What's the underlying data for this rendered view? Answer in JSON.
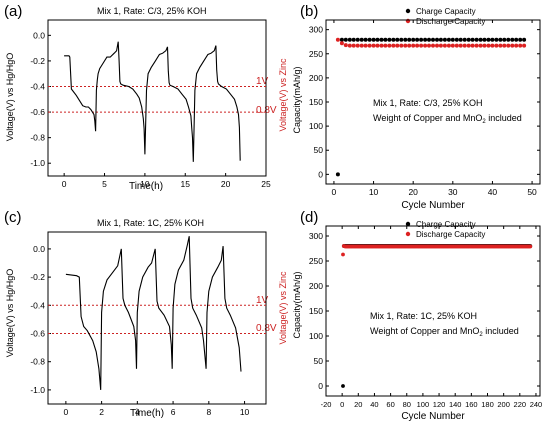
{
  "panels": [
    {
      "letter": "(a)",
      "annotation": "Mix 1, Rate: C/3, 25% KOH",
      "xlabel": "Time(h)",
      "ylabel": "Voltage(V) vs Hg/HgO",
      "ylabel_right": "Voltage(V) vs Zinc",
      "xticks": [
        "0",
        "5",
        "10",
        "15",
        "20",
        "25"
      ],
      "yticks": [
        "-1.0",
        "-0.8",
        "-0.6",
        "-0.4",
        "-0.2",
        "0.0"
      ],
      "ref_labels": [
        "1V",
        "0.8V"
      ]
    },
    {
      "letter": "(b)",
      "legend": [
        "Charge Capacity",
        "Discharge Capacity"
      ],
      "note_line1": "Mix 1, Rate: C/3, 25% KOH",
      "note_line2_pre": "Weight of Copper and MnO",
      "note_sub": "2",
      "note_line2_post": " included",
      "xlabel": "Cycle Number",
      "ylabel": "Capacity(mAh/g)",
      "xticks": [
        "0",
        "10",
        "20",
        "30",
        "40",
        "50"
      ],
      "yticks": [
        "0",
        "50",
        "100",
        "150",
        "200",
        "250",
        "300"
      ]
    },
    {
      "letter": "(c)",
      "annotation": "Mix 1, Rate: 1C, 25% KOH",
      "xlabel": "Time(h)",
      "ylabel": "Voltage(V) vs Hg/HgO",
      "ylabel_right": "Voltage(V) vs Zinc",
      "xticks": [
        "0",
        "2",
        "4",
        "6",
        "8",
        "10"
      ],
      "yticks": [
        "-1.0",
        "-0.8",
        "-0.6",
        "-0.4",
        "-0.2",
        "0.0"
      ],
      "ref_labels": [
        "1V",
        "0.8V"
      ]
    },
    {
      "letter": "(d)",
      "legend": [
        "Charge Capacity",
        "Discharge Capacity"
      ],
      "note_line1": "Mix 1, Rate: 1C, 25% KOH",
      "note_line2_pre": "Weight of Copper and MnO",
      "note_sub": "2",
      "note_line2_post": " included",
      "xlabel": "Cycle Number",
      "ylabel": "Capacity(mAh/g)",
      "xticks": [
        "-20",
        "0",
        "20",
        "40",
        "60",
        "80",
        "100",
        "120",
        "140",
        "160",
        "180",
        "200",
        "220",
        "240"
      ],
      "yticks": [
        "0",
        "50",
        "100",
        "150",
        "200",
        "250",
        "300"
      ]
    }
  ],
  "colors": {
    "line": "#000000",
    "ref": "#cc2222",
    "charge": "#000000",
    "discharge": "#dd2222"
  },
  "chart_data": [
    {
      "type": "line",
      "xlim": [
        -2,
        25
      ],
      "ylim": [
        -1.1,
        0.12
      ],
      "grid": false,
      "reference_lines": [
        -0.4,
        -0.6
      ],
      "series": [
        {
          "x": [
            0,
            0.6,
            0.7,
            0.9,
            1.5,
            2.3,
            2.7,
            3.0,
            3.3,
            3.7,
            3.8,
            3.9,
            4.0,
            4.1,
            4.2,
            4.4,
            4.8,
            5.3,
            5.7,
            6.2,
            6.5,
            6.7,
            6.8,
            6.9,
            7.0,
            7.3,
            8.0,
            8.5,
            9.0,
            9.3,
            9.6,
            9.8,
            9.9,
            10.0,
            10.2,
            10.4,
            10.8,
            11.3,
            11.8,
            12.2,
            12.6,
            12.8,
            12.9,
            13.0,
            13.1,
            13.5,
            14.1,
            14.6,
            15.1,
            15.4,
            15.7,
            15.8,
            15.9,
            16.0,
            16.2,
            16.4,
            16.8,
            17.3,
            17.8,
            18.2,
            18.6,
            18.8,
            18.9,
            19.0,
            19.1,
            19.5,
            20.1,
            20.6,
            21.1,
            21.4,
            21.6,
            21.7,
            21.8
          ],
          "y": [
            -0.16,
            -0.16,
            -0.17,
            -0.42,
            -0.47,
            -0.55,
            -0.56,
            -0.56,
            -0.58,
            -0.62,
            -0.67,
            -0.75,
            -0.43,
            -0.35,
            -0.3,
            -0.26,
            -0.22,
            -0.17,
            -0.17,
            -0.14,
            -0.12,
            -0.05,
            -0.2,
            -0.36,
            -0.38,
            -0.39,
            -0.4,
            -0.42,
            -0.46,
            -0.49,
            -0.56,
            -0.65,
            -0.73,
            -0.93,
            -0.43,
            -0.3,
            -0.25,
            -0.2,
            -0.15,
            -0.14,
            -0.12,
            -0.09,
            -0.28,
            -0.37,
            -0.39,
            -0.4,
            -0.42,
            -0.46,
            -0.5,
            -0.56,
            -0.63,
            -0.72,
            -0.8,
            -0.99,
            -0.43,
            -0.3,
            -0.25,
            -0.2,
            -0.15,
            -0.14,
            -0.12,
            -0.08,
            -0.27,
            -0.36,
            -0.38,
            -0.4,
            -0.42,
            -0.46,
            -0.5,
            -0.56,
            -0.62,
            -0.72,
            -0.98
          ]
        }
      ]
    },
    {
      "type": "scatter",
      "xlim": [
        -2,
        52
      ],
      "ylim": [
        -20,
        320
      ],
      "grid": false,
      "legend_position": "top-right",
      "series": [
        {
          "name": "Charge Capacity",
          "x": [
            1,
            2,
            3,
            4,
            5,
            6,
            7,
            8,
            9,
            10,
            11,
            12,
            13,
            14,
            15,
            16,
            17,
            18,
            19,
            20,
            21,
            22,
            23,
            24,
            25,
            26,
            27,
            28,
            29,
            30,
            31,
            32,
            33,
            34,
            35,
            36,
            37,
            38,
            39,
            40,
            41,
            42,
            43,
            44,
            45,
            46,
            47,
            48
          ],
          "y": [
            0,
            279,
            279,
            279,
            279,
            279,
            279,
            279,
            279,
            279,
            279,
            279,
            279,
            279,
            279,
            279,
            279,
            279,
            279,
            279,
            279,
            279,
            279,
            279,
            279,
            279,
            279,
            279,
            279,
            279,
            279,
            279,
            279,
            279,
            279,
            279,
            279,
            279,
            279,
            279,
            279,
            279,
            279,
            279,
            279,
            279,
            279,
            279
          ]
        },
        {
          "name": "Discharge Capacity",
          "x": [
            1,
            2,
            3,
            4,
            5,
            6,
            7,
            8,
            9,
            10,
            11,
            12,
            13,
            14,
            15,
            16,
            17,
            18,
            19,
            20,
            21,
            22,
            23,
            24,
            25,
            26,
            27,
            28,
            29,
            30,
            31,
            32,
            33,
            34,
            35,
            36,
            37,
            38,
            39,
            40,
            41,
            42,
            43,
            44,
            45,
            46,
            47,
            48
          ],
          "y": [
            279,
            272,
            268,
            267,
            267,
            267,
            267,
            267,
            267,
            267,
            267,
            267,
            267,
            267,
            267,
            267,
            267,
            267,
            267,
            267,
            267,
            267,
            267,
            267,
            267,
            267,
            267,
            267,
            267,
            267,
            267,
            267,
            267,
            267,
            267,
            267,
            267,
            267,
            267,
            267,
            267,
            267,
            267,
            267,
            267,
            267,
            267,
            267
          ]
        }
      ]
    },
    {
      "type": "line",
      "xlim": [
        -1,
        11.2
      ],
      "ylim": [
        -1.1,
        0.12
      ],
      "grid": false,
      "reference_lines": [
        -0.4,
        -0.6
      ],
      "series": [
        {
          "x": [
            0,
            0.6,
            0.75,
            0.85,
            1.0,
            1.2,
            1.5,
            1.7,
            1.85,
            1.95,
            2.0,
            2.1,
            2.3,
            2.6,
            2.9,
            3.1,
            3.2,
            3.3,
            3.5,
            3.8,
            3.9,
            3.95,
            4.0,
            4.1,
            4.3,
            4.6,
            4.8,
            5.0,
            5.1,
            5.2,
            5.5,
            5.8,
            5.9,
            5.95,
            6.0,
            6.1,
            6.3,
            6.6,
            6.8,
            6.9,
            7.0,
            7.1,
            7.3,
            7.6,
            7.7,
            7.8,
            7.85,
            7.9,
            8.0,
            8.2,
            8.5,
            8.7,
            8.8,
            8.9,
            9.0,
            9.2,
            9.5,
            9.7,
            9.8
          ],
          "y": [
            -0.18,
            -0.19,
            -0.2,
            -0.48,
            -0.55,
            -0.58,
            -0.65,
            -0.73,
            -0.85,
            -1.0,
            -0.45,
            -0.3,
            -0.22,
            -0.17,
            -0.12,
            0.0,
            -0.35,
            -0.4,
            -0.45,
            -0.55,
            -0.65,
            -0.85,
            -0.45,
            -0.3,
            -0.2,
            -0.13,
            -0.1,
            0.0,
            -0.37,
            -0.42,
            -0.47,
            -0.55,
            -0.68,
            -0.85,
            -0.42,
            -0.25,
            -0.15,
            -0.08,
            0.03,
            0.09,
            -0.35,
            -0.42,
            -0.47,
            -0.56,
            -0.65,
            -0.78,
            -0.85,
            -0.45,
            -0.3,
            -0.2,
            -0.13,
            -0.08,
            0.02,
            -0.35,
            -0.42,
            -0.47,
            -0.56,
            -0.7,
            -0.87
          ]
        }
      ]
    },
    {
      "type": "scatter",
      "xlim": [
        -20,
        245
      ],
      "ylim": [
        -20,
        320
      ],
      "grid": false,
      "legend_position": "top-right",
      "series": [
        {
          "name": "Charge Capacity",
          "x": [
            1,
            2,
            4,
            6,
            8,
            10,
            20,
            40,
            60,
            80,
            100,
            120,
            140,
            160,
            180,
            200,
            220,
            233
          ],
          "y": [
            0,
            280,
            280,
            280,
            280,
            280,
            280,
            280,
            280,
            280,
            280,
            280,
            280,
            280,
            280,
            280,
            280,
            280
          ]
        },
        {
          "name": "Discharge Capacity",
          "x": [
            1,
            2,
            4,
            6,
            8,
            10,
            20,
            40,
            60,
            80,
            100,
            120,
            140,
            160,
            180,
            200,
            220,
            233
          ],
          "y": [
            263,
            280,
            279,
            279,
            279,
            279,
            279,
            279,
            279,
            279,
            279,
            279,
            279,
            279,
            279,
            279,
            279,
            279
          ]
        }
      ]
    }
  ]
}
